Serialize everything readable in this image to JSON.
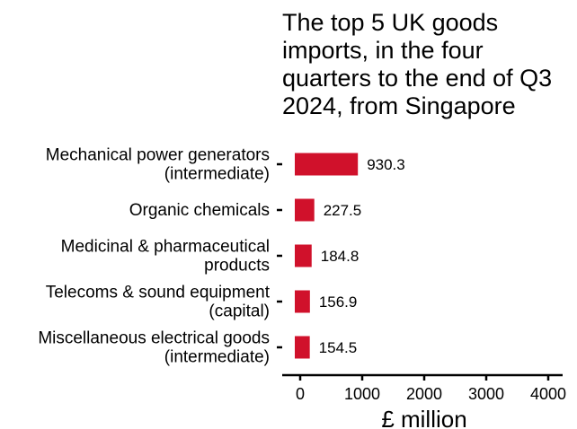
{
  "chart_data": {
    "type": "bar",
    "orientation": "horizontal",
    "title_lines": [
      "The top 5 UK goods",
      "imports, in the four",
      "quarters to the end of Q3",
      "2024, from Singapore"
    ],
    "categories": [
      [
        "Mechanical power generators",
        "(intermediate)"
      ],
      [
        "Organic chemicals"
      ],
      [
        "Medicinal & pharmaceutical",
        "products"
      ],
      [
        "Telecoms & sound equipment",
        "(capital)"
      ],
      [
        "Miscellaneous electrical goods",
        "(intermediate)"
      ]
    ],
    "values": [
      930.3,
      227.5,
      184.8,
      156.9,
      154.5
    ],
    "data_labels": [
      "930.3",
      "227.5",
      "184.8",
      "156.9",
      "154.5"
    ],
    "xlabel": "£ million",
    "ylabel": "",
    "xlim": [
      0,
      4000
    ],
    "xticks": [
      0,
      1000,
      2000,
      3000,
      4000
    ],
    "xtick_labels": [
      "0",
      "1000",
      "2000",
      "3000",
      "4000"
    ],
    "grid": false,
    "colors": {
      "bar": "#d0112b",
      "text": "#000000",
      "axis": "#000000"
    }
  }
}
